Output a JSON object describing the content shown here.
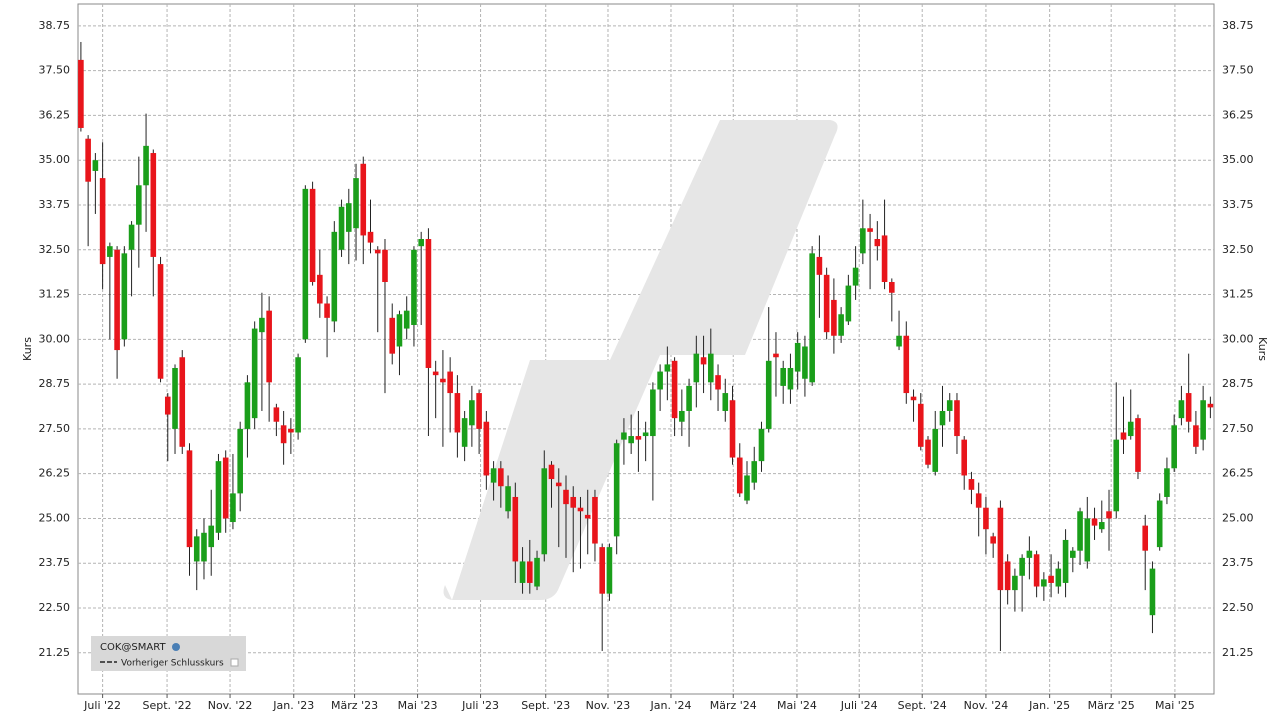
{
  "chart_data": {
    "type": "candlestick",
    "ylabel": "Kurs",
    "legend": {
      "symbol": "COK@SMART",
      "line": "Vorheriger Schlusskurs"
    },
    "up_color": "#1a9e1a",
    "down_color": "#e8151b",
    "grid": true,
    "ylim": [
      20.1,
      39.36
    ],
    "yticks": [
      21.25,
      {
        "value": 22.5,
        "label": "22.50"
      },
      23.75,
      {
        "value": 25,
        "label": "25.00"
      },
      26.25,
      {
        "value": 27.5,
        "label": "27.50"
      },
      28.75,
      {
        "value": 30,
        "label": "30.00"
      },
      31.25,
      {
        "value": 32.5,
        "label": "32.50"
      },
      33.75,
      {
        "value": 35,
        "label": "35.00"
      },
      36.25,
      {
        "value": 37.5,
        "label": "37.50"
      },
      38.75
    ],
    "xlim": [
      -0.4,
      156.5
    ],
    "xticks": [
      {
        "value": 3.0,
        "label": "Juli '22"
      },
      {
        "value": 11.9,
        "label": "Sept. '22"
      },
      {
        "value": 20.6,
        "label": "Nov. '22"
      },
      {
        "value": 29.4,
        "label": "Jan. '23"
      },
      {
        "value": 37.8,
        "label": "März '23"
      },
      {
        "value": 46.5,
        "label": "Mai '23"
      },
      {
        "value": 55.2,
        "label": "Juli '23"
      },
      {
        "value": 64.2,
        "label": "Sept. '23"
      },
      {
        "value": 72.8,
        "label": "Nov. '23"
      },
      {
        "value": 81.5,
        "label": "Jan. '24"
      },
      {
        "value": 90.1,
        "label": "März '24"
      },
      {
        "value": 98.9,
        "label": "Mai '24"
      },
      {
        "value": 107.5,
        "label": "Juli '24"
      },
      {
        "value": 116.2,
        "label": "Sept. '24"
      },
      {
        "value": 125.0,
        "label": "Nov. '24"
      },
      {
        "value": 133.8,
        "label": "Jan. '25"
      },
      {
        "value": 142.3,
        "label": "März '25"
      },
      {
        "value": 151.1,
        "label": "Mai '25"
      }
    ],
    "open": [
      37.8,
      35.6,
      34.7,
      34.5,
      32.3,
      32.5,
      30.0,
      32.5,
      33.2,
      34.3,
      35.2,
      32.1,
      28.4,
      27.5,
      29.5,
      26.9,
      23.8,
      23.8,
      24.2,
      24.6,
      26.7,
      24.9,
      25.7,
      27.5,
      27.8,
      30.2,
      30.8,
      28.1,
      27.6,
      27.5,
      27.4,
      30.0,
      34.2,
      31.8,
      31.0,
      30.5,
      32.5,
      33.0,
      33.1,
      34.9,
      33.0,
      32.5,
      32.5,
      30.6,
      29.8,
      30.3,
      30.4,
      32.6,
      32.8,
      29.1,
      28.9,
      29.1,
      28.5,
      27.0,
      27.6,
      28.5,
      27.7,
      26.0,
      26.4,
      25.2,
      25.6,
      23.2,
      23.8,
      23.1,
      24.0,
      26.5,
      26.0,
      25.8,
      25.6,
      25.3,
      25.1,
      25.6,
      24.2,
      22.9,
      24.5,
      27.2,
      27.1,
      27.3,
      27.3,
      27.3,
      28.6,
      29.1,
      29.4,
      27.7,
      28.0,
      28.8,
      29.5,
      28.8,
      29.0,
      28.0,
      28.3,
      26.7,
      25.5,
      26.0,
      26.6,
      27.5,
      29.6,
      28.7,
      28.6,
      29.1,
      28.9,
      28.8,
      32.3,
      31.8,
      31.1,
      30.1,
      30.5,
      31.5,
      32.4,
      33.1,
      32.8,
      32.9,
      31.6,
      29.8,
      30.1,
      28.4,
      28.2,
      27.2,
      26.3,
      27.6,
      28.0,
      28.3,
      27.2,
      26.1,
      25.7,
      25.3,
      24.5,
      25.3,
      23.8,
      23.0,
      23.4,
      23.9,
      24.0,
      23.1,
      23.4,
      23.1,
      23.2,
      23.9,
      24.1,
      23.8,
      25.0,
      24.7,
      25.2,
      25.2,
      27.4,
      27.3,
      27.8,
      24.8,
      22.3,
      24.2,
      25.6,
      26.4,
      27.8,
      28.5,
      27.6,
      27.2,
      28.2
    ],
    "high": [
      38.3,
      35.7,
      35.2,
      35.5,
      32.7,
      32.6,
      32.6,
      33.3,
      35.1,
      36.3,
      35.3,
      32.3,
      28.5,
      29.3,
      29.7,
      27.1,
      24.7,
      25.0,
      25.8,
      26.8,
      26.9,
      26.8,
      27.7,
      29.0,
      30.5,
      31.3,
      31.2,
      28.2,
      28.0,
      27.8,
      29.6,
      34.3,
      34.4,
      32.5,
      31.2,
      33.3,
      33.9,
      34.2,
      34.9,
      35.1,
      33.9,
      32.6,
      32.8,
      31.0,
      30.8,
      31.2,
      32.6,
      33.0,
      33.1,
      29.4,
      29.7,
      29.5,
      29.0,
      28.0,
      28.7,
      28.6,
      28.0,
      26.6,
      26.6,
      26.2,
      26.0,
      24.2,
      24.4,
      24.1,
      26.9,
      26.6,
      26.4,
      26.2,
      25.9,
      25.6,
      25.8,
      25.8,
      24.3,
      24.3,
      27.2,
      27.8,
      27.9,
      28.0,
      27.7,
      28.8,
      29.3,
      29.8,
      29.5,
      28.6,
      28.9,
      30.1,
      30.1,
      30.3,
      29.3,
      28.9,
      28.7,
      27.1,
      26.6,
      27.0,
      27.7,
      30.9,
      30.2,
      29.4,
      29.6,
      30.2,
      30.1,
      32.6,
      32.9,
      32.0,
      31.7,
      30.9,
      31.8,
      32.6,
      33.9,
      33.5,
      33.3,
      33.9,
      31.7,
      30.8,
      30.5,
      28.6,
      28.5,
      27.3,
      28.0,
      28.7,
      28.5,
      28.5,
      27.3,
      26.3,
      26.0,
      25.6,
      24.6,
      25.5,
      24.0,
      23.6,
      24.0,
      24.5,
      24.1,
      23.5,
      24.0,
      23.8,
      24.7,
      24.2,
      25.3,
      25.6,
      25.3,
      25.5,
      25.8,
      28.8,
      28.4,
      28.6,
      27.9,
      25.1,
      23.8,
      25.7,
      26.7,
      27.9,
      28.7,
      29.6,
      28.0,
      28.7,
      28.4
    ],
    "low": [
      35.8,
      32.6,
      33.5,
      31.4,
      30.0,
      28.9,
      29.8,
      31.2,
      32.0,
      33.0,
      31.2,
      28.8,
      26.6,
      26.8,
      26.8,
      23.4,
      23.0,
      23.3,
      23.4,
      24.4,
      24.6,
      24.7,
      25.2,
      26.7,
      27.5,
      28.0,
      27.7,
      27.3,
      26.5,
      26.8,
      27.2,
      29.9,
      31.5,
      30.6,
      29.5,
      30.2,
      32.3,
      32.1,
      32.2,
      32.1,
      32.4,
      30.2,
      28.5,
      29.3,
      29.0,
      30.0,
      29.8,
      30.4,
      27.3,
      27.8,
      27.0,
      27.4,
      26.7,
      26.6,
      27.0,
      26.8,
      25.8,
      25.5,
      25.3,
      25.0,
      23.2,
      22.9,
      22.9,
      23.0,
      23.8,
      25.3,
      24.2,
      23.9,
      23.5,
      23.6,
      24.0,
      23.8,
      21.3,
      22.7,
      24.0,
      26.5,
      26.8,
      26.3,
      26.6,
      25.5,
      28.0,
      28.3,
      27.3,
      27.3,
      27.0,
      28.1,
      28.5,
      28.3,
      28.0,
      27.7,
      26.5,
      25.6,
      25.4,
      25.8,
      26.3,
      27.4,
      28.4,
      28.2,
      28.2,
      28.6,
      28.4,
      28.7,
      30.6,
      30.0,
      29.6,
      29.9,
      30.4,
      31.1,
      32.1,
      31.4,
      32.2,
      31.4,
      30.5,
      29.7,
      28.2,
      27.7,
      26.9,
      26.4,
      26.2,
      27.0,
      27.7,
      26.8,
      25.8,
      25.4,
      24.5,
      24.0,
      23.9,
      21.3,
      22.6,
      22.4,
      22.4,
      23.3,
      22.8,
      22.7,
      22.8,
      22.9,
      22.8,
      23.5,
      23.7,
      23.6,
      24.4,
      24.6,
      24.1,
      25.0,
      26.8,
      27.2,
      26.1,
      23.0,
      21.8,
      24.1,
      25.4,
      26.3,
      27.6,
      27.4,
      26.8,
      26.9,
      27.8
    ],
    "close": [
      35.9,
      34.4,
      35.0,
      32.1,
      32.6,
      29.7,
      32.4,
      33.2,
      34.3,
      35.4,
      32.3,
      28.9,
      27.9,
      29.2,
      27.0,
      24.2,
      24.5,
      24.6,
      24.8,
      26.6,
      25.0,
      25.7,
      27.5,
      28.8,
      30.3,
      30.6,
      28.8,
      27.7,
      27.1,
      27.4,
      29.5,
      34.2,
      31.6,
      31.0,
      30.6,
      33.0,
      33.7,
      33.8,
      34.5,
      32.9,
      32.7,
      32.4,
      31.6,
      29.6,
      30.7,
      30.8,
      32.5,
      32.8,
      29.2,
      29.0,
      28.8,
      28.5,
      27.4,
      27.8,
      28.3,
      27.5,
      26.2,
      26.4,
      25.9,
      25.9,
      23.8,
      23.8,
      23.2,
      23.9,
      26.4,
      26.1,
      25.9,
      25.4,
      25.3,
      25.2,
      25.0,
      24.3,
      22.9,
      24.2,
      27.1,
      27.4,
      27.3,
      27.2,
      27.4,
      28.6,
      29.1,
      29.3,
      27.8,
      28.0,
      28.7,
      29.6,
      29.3,
      29.6,
      28.6,
      28.5,
      26.7,
      25.7,
      26.2,
      26.6,
      27.5,
      29.4,
      29.5,
      29.2,
      29.2,
      29.9,
      29.8,
      32.4,
      31.8,
      30.2,
      30.1,
      30.7,
      31.5,
      32.0,
      33.1,
      33.0,
      32.6,
      31.6,
      31.3,
      30.1,
      28.5,
      28.3,
      27.0,
      26.5,
      27.5,
      28.0,
      28.3,
      27.3,
      26.2,
      25.8,
      25.3,
      24.7,
      24.3,
      23.0,
      23.0,
      23.4,
      23.9,
      24.1,
      23.1,
      23.3,
      23.2,
      23.6,
      24.4,
      24.1,
      25.2,
      25.0,
      24.8,
      24.9,
      25.0,
      27.2,
      27.2,
      27.7,
      26.3,
      24.1,
      23.6,
      25.5,
      26.4,
      27.6,
      28.3,
      27.7,
      27.0,
      28.3,
      28.1
    ]
  }
}
